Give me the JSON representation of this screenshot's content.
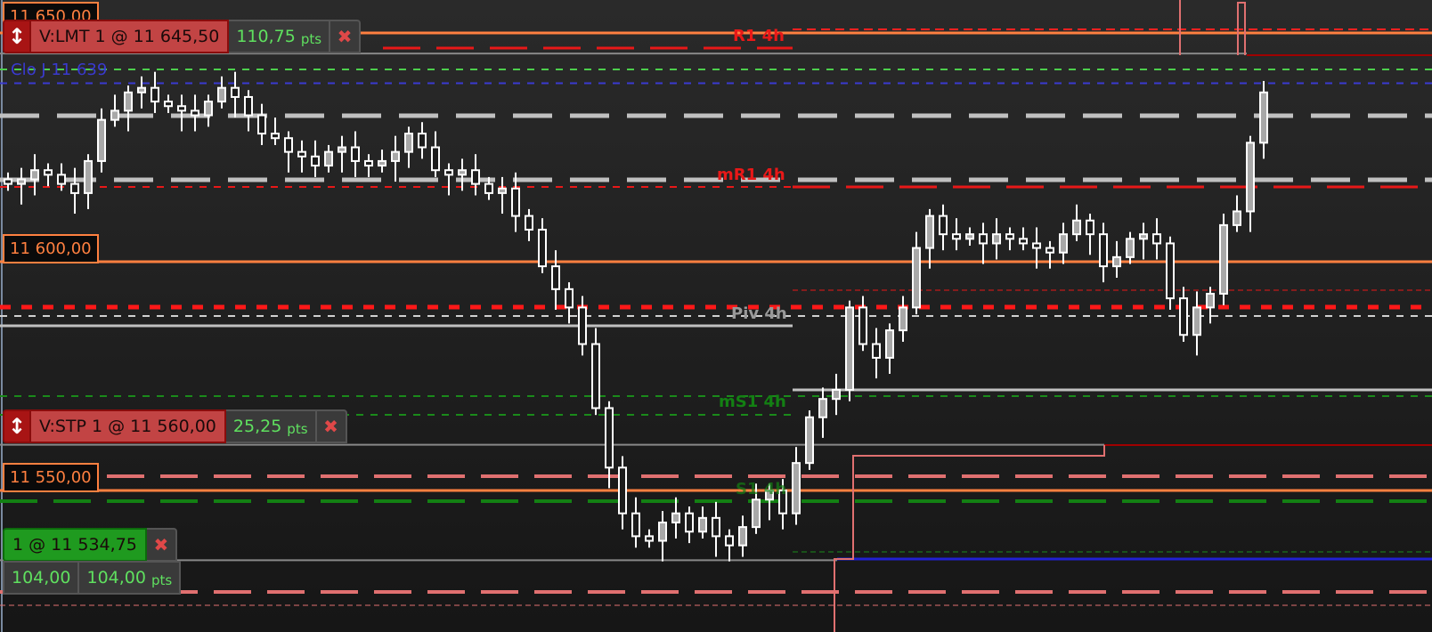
{
  "price_labels": [
    "11 650,00",
    "11 600,00",
    "11 550,00"
  ],
  "orders": {
    "limit": {
      "label": "V:LMT  1 @ 11 645,50",
      "pts": "110,75",
      "unit": "pts"
    },
    "stop": {
      "label": "V:STP  1 @ 11 560,00",
      "pts": "25,25",
      "unit": "pts"
    },
    "position": {
      "label": "1 @ 11 534,75",
      "pnl": "104,00",
      "pts": "104,00",
      "unit": "pts"
    }
  },
  "level_labels": {
    "r1": "R1 4h",
    "mr1": "mR1 4h",
    "piv": "Piv 4h",
    "ms1": "mS1 4h",
    "s1": "S1 4h",
    "close": "Clo J 11 639"
  },
  "icons": {
    "grip": "up-down-arrow-icon",
    "close": "close-x-icon"
  },
  "colors": {
    "background": "#1c1c1c",
    "price_line": "#ff8040",
    "resistance": "#ff2020",
    "support": "#1a8a1a",
    "pivot": "#c0c0c0",
    "close": "#3a3ad0",
    "candle": "#ffffff"
  },
  "chart_data": {
    "type": "candlestick",
    "instrument_unit": "pts",
    "ylim": [
      11520,
      11655
    ],
    "closes": [
      11617,
      11618,
      11620,
      11619,
      11617,
      11615,
      11622,
      11631,
      11633,
      11637,
      11638,
      11635,
      11634,
      11633,
      11632,
      11635,
      11638,
      11636,
      11632,
      11628,
      11627,
      11624,
      11623,
      11621,
      11624,
      11625,
      11622,
      11621,
      11622,
      11624,
      11628,
      11625,
      11620,
      11619,
      11620,
      11617,
      11615,
      11616,
      11610,
      11607,
      11599,
      11594,
      11590,
      11582,
      11568,
      11555,
      11545,
      11540,
      11539,
      11543,
      11545,
      11541,
      11544,
      11540,
      11538,
      11542,
      11548,
      11550,
      11545,
      11556,
      11566,
      11570,
      11572,
      11590,
      11582,
      11579,
      11585,
      11590,
      11603,
      11610,
      11606,
      11605,
      11606,
      11604,
      11606,
      11605,
      11604,
      11603,
      11602,
      11606,
      11609,
      11606,
      11599,
      11601,
      11605,
      11606,
      11604,
      11592,
      11584,
      11590,
      11593,
      11608,
      11611,
      11626,
      11637
    ],
    "price_levels": [
      11650,
      11600,
      11550
    ],
    "limit_order": 11645.5,
    "stop_order": 11560,
    "position_entry": 11534.75,
    "close_prev_day": 11639
  }
}
